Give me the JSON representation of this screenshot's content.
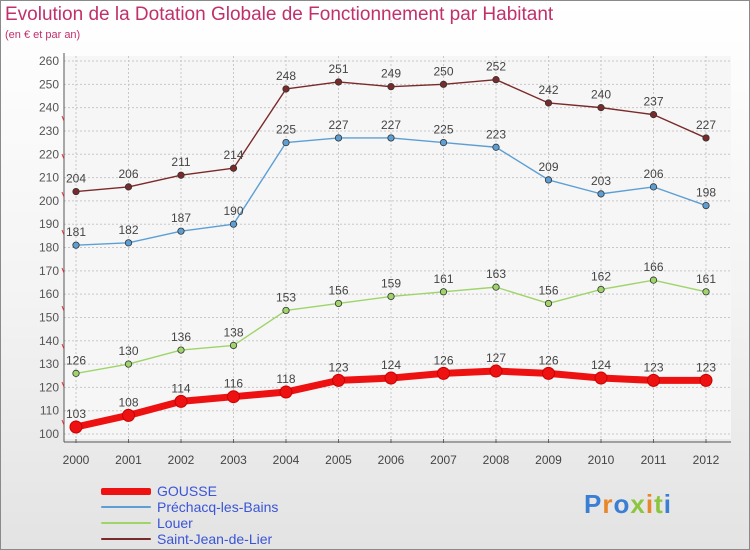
{
  "header": {
    "title": "Evolution de la Dotation Globale de Fonctionnement par Habitant",
    "subtitle": "(en € et par an)"
  },
  "logo": {
    "text": "Proxiti",
    "letter_colors": [
      "#3b7fd4",
      "#e8862a",
      "#3b7fd4",
      "#8cc63f",
      "#e8862a",
      "#8cc63f",
      "#3b7fd4"
    ]
  },
  "chart_data": {
    "type": "line",
    "x": [
      "2000",
      "2001",
      "2002",
      "2003",
      "2004",
      "2005",
      "2006",
      "2007",
      "2008",
      "2009",
      "2010",
      "2011",
      "2012"
    ],
    "ylim": [
      100,
      260
    ],
    "yticks": [
      100,
      110,
      120,
      130,
      140,
      150,
      160,
      170,
      180,
      190,
      200,
      210,
      220,
      230,
      240,
      250,
      260
    ],
    "grid": true,
    "legend_position": "bottom-left",
    "series": [
      {
        "name": "GOUSSE",
        "color": "#ee1111",
        "values": [
          103,
          108,
          114,
          116,
          118,
          123,
          124,
          126,
          127,
          126,
          124,
          123,
          123
        ]
      },
      {
        "name": "Préchacq-les-Bains",
        "color": "#5d9fd4",
        "values": [
          181,
          182,
          187,
          190,
          225,
          227,
          227,
          225,
          223,
          209,
          203,
          206,
          198
        ]
      },
      {
        "name": "Louer",
        "color": "#9fd46a",
        "values": [
          126,
          130,
          136,
          138,
          153,
          156,
          159,
          161,
          163,
          156,
          162,
          166,
          161
        ]
      },
      {
        "name": "Saint-Jean-de-Lier",
        "color": "#7a2a2a",
        "values": [
          204,
          206,
          211,
          214,
          248,
          251,
          249,
          250,
          252,
          242,
          240,
          237,
          227
        ]
      }
    ]
  }
}
